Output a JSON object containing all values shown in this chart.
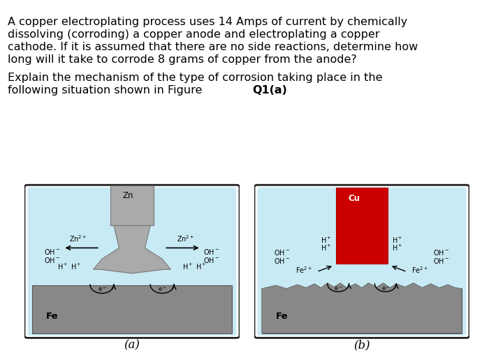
{
  "background_color": "#ffffff",
  "text_color": "#000000",
  "fig_a_label": "(a)",
  "fig_b_label": "(b)",
  "container_edge": "#333333",
  "fe_color": "#888888",
  "zn_color": "#aaaaaa",
  "cu_color": "#cc0000",
  "water_color": "#c8eaf5",
  "text_lines": [
    "A copper electroplating process uses 14 Amps of current by chemically",
    "dissolving (corroding) a copper anode and electroplating a copper",
    "cathode. If it is assumed that there are no side reactions, determine how",
    "long will it take to corrode 8 grams of copper from the anode?"
  ],
  "text_lines2": [
    "Explain the mechanism of the type of corrosion taking place in the",
    "following situation shown in Figure "
  ],
  "bold_suffix": "Q1(a)"
}
